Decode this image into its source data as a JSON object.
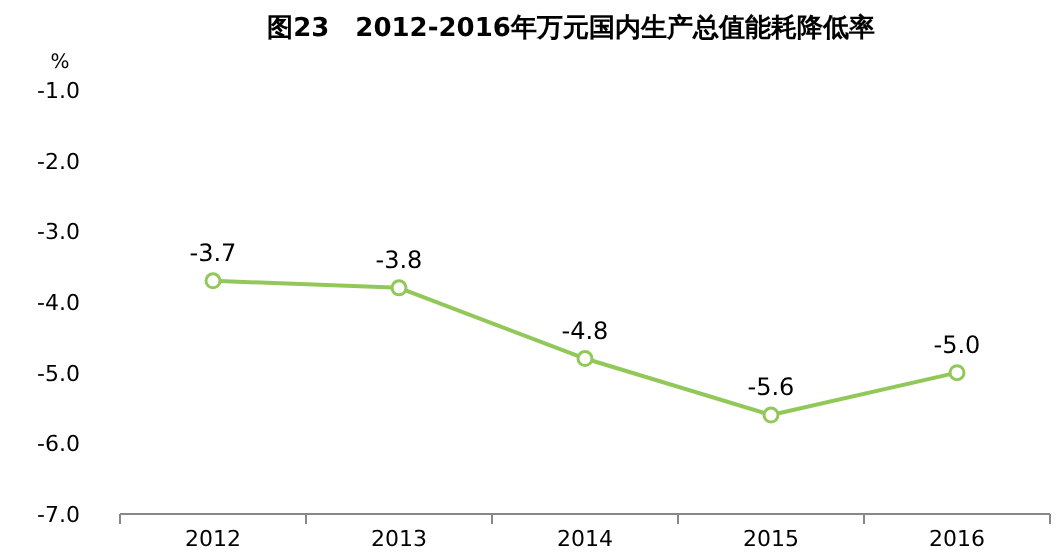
{
  "chart_data": {
    "type": "line",
    "title": "图23　2012-2016年万元国内生产总值能耗降低率",
    "ylabel": "%",
    "categories": [
      "2012",
      "2013",
      "2014",
      "2015",
      "2016"
    ],
    "series": [
      {
        "color": "#92c85a",
        "values": [
          -3.7,
          -3.8,
          -4.8,
          -5.6,
          -5.0
        ],
        "value_labels": [
          "-3.7",
          "-3.8",
          "-4.8",
          "-5.6",
          "-5.0"
        ]
      }
    ],
    "ylim": [
      -7,
      -1
    ],
    "yticks": [
      {
        "value": -1,
        "label": "-1.0"
      },
      {
        "value": -2,
        "label": "-2.0"
      },
      {
        "value": -3,
        "label": "-3.0"
      },
      {
        "value": -4,
        "label": "-4.0"
      },
      {
        "value": -5,
        "label": "-5.0"
      },
      {
        "value": -6,
        "label": "-6.0"
      },
      {
        "value": -7,
        "label": "-7.0"
      }
    ],
    "grid": false,
    "marker": "circle",
    "line_style": "solid"
  }
}
